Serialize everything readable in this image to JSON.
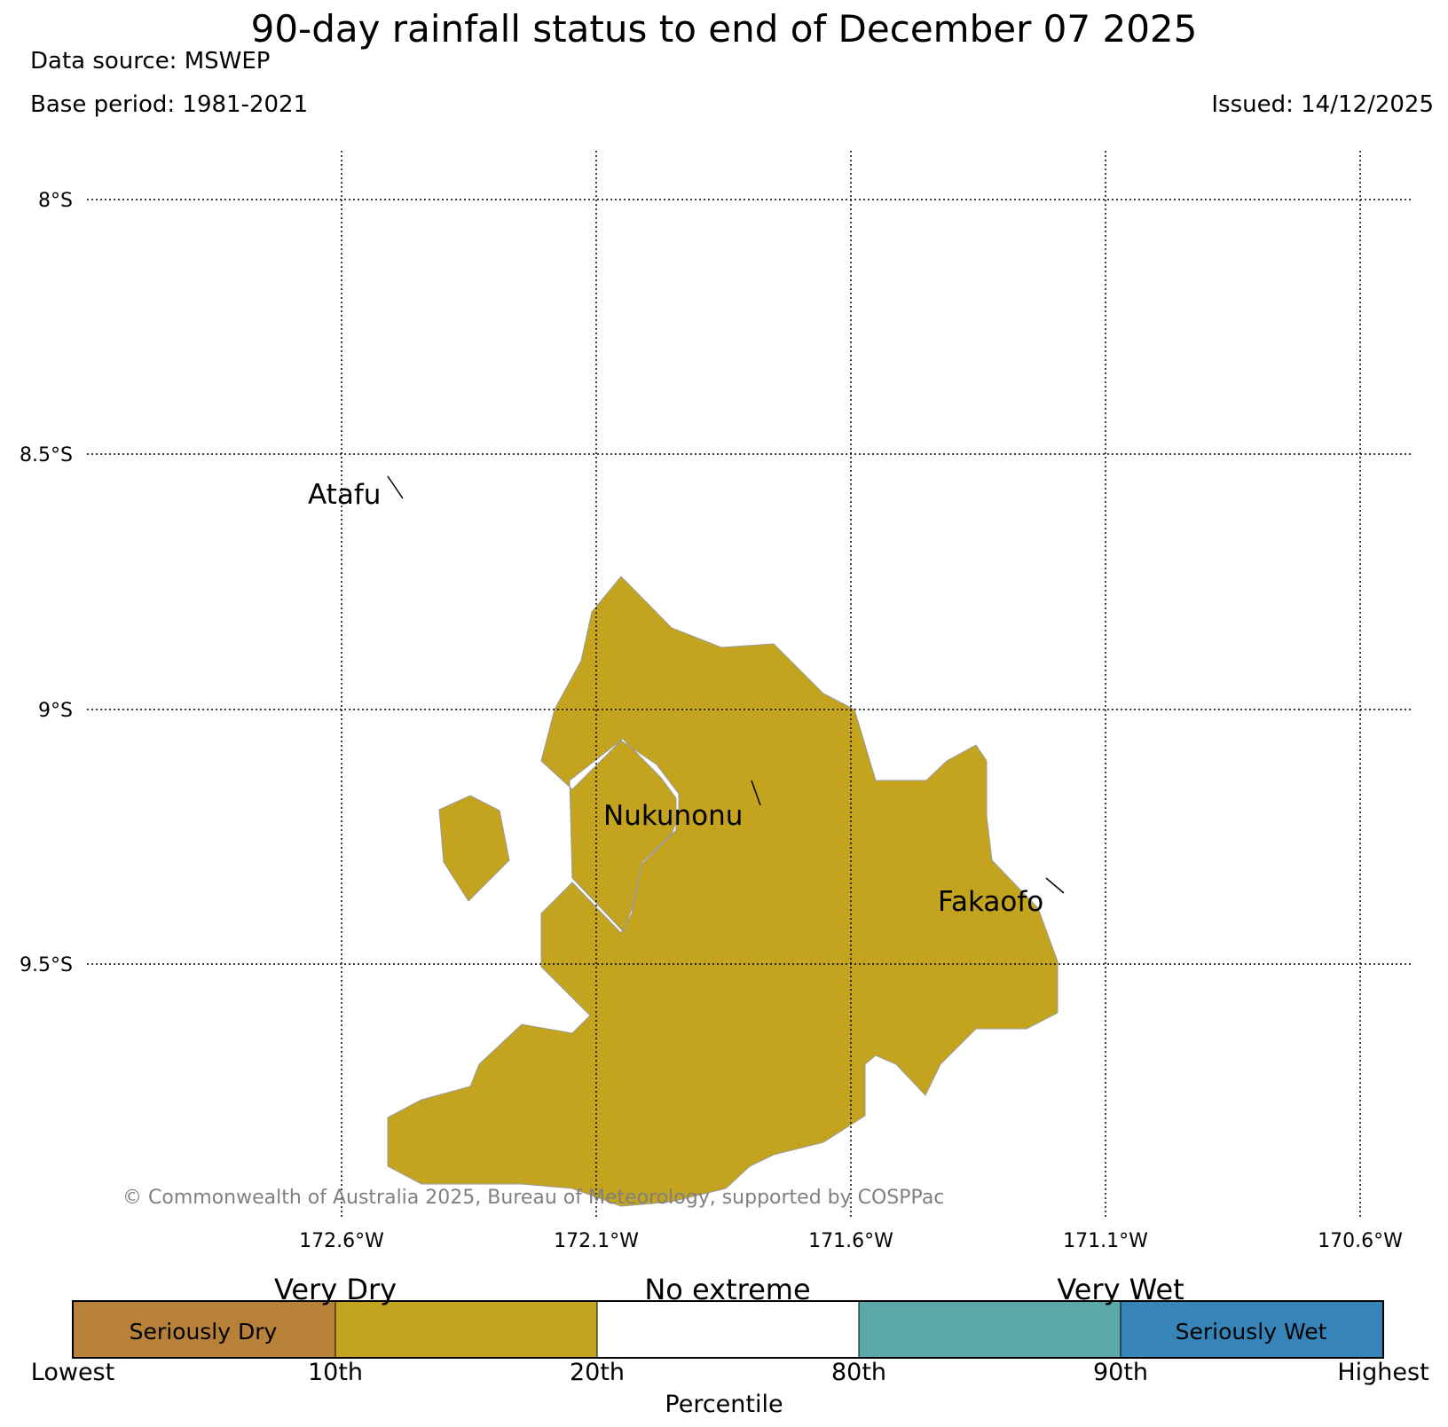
{
  "header": {
    "title": "90-day rainfall status to end of December 07 2025",
    "data_source": "Data source: MSWEP",
    "base_period": "Base period: 1981-2021",
    "issued": "Issued: 14/12/2025"
  },
  "map": {
    "lat_labels": [
      "8°S",
      "8.5°S",
      "9°S",
      "9.5°S"
    ],
    "lon_labels": [
      "172.6°W",
      "172.1°W",
      "171.6°W",
      "171.1°W",
      "170.6°W"
    ],
    "places": [
      {
        "name": "Atafu"
      },
      {
        "name": "Nukunonu"
      },
      {
        "name": "Fakaofo"
      }
    ],
    "fill_color": "#c4a41e",
    "copyright": "© Commonwealth of Australia 2025, Bureau of Meteorology, supported by COSPPac"
  },
  "legend": {
    "categories": [
      {
        "color": "#b8813a",
        "label": "Seriously Dry"
      },
      {
        "color": "#c4a41e",
        "label": "Very Dry"
      },
      {
        "color": "#ffffff",
        "label": "No extreme"
      },
      {
        "color": "#5ba8ab",
        "label": "Very Wet"
      },
      {
        "color": "#3684b8",
        "label": "Seriously Wet"
      }
    ],
    "ticks": [
      "Lowest",
      "10th",
      "20th",
      "80th",
      "90th",
      "Highest"
    ],
    "axis_label": "Percentile"
  }
}
